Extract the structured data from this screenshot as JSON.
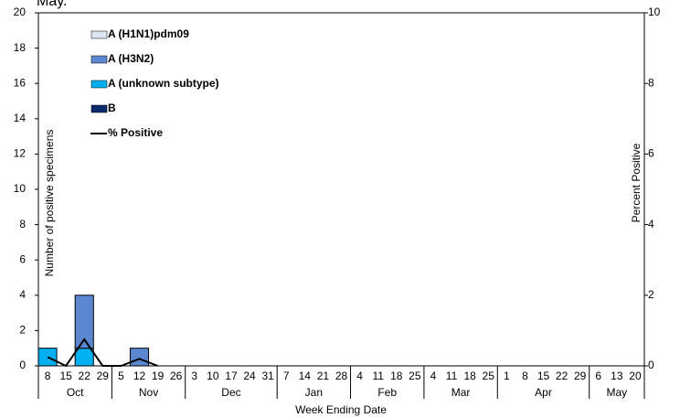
{
  "caption": "May.",
  "chart_data": {
    "type": "bar",
    "y_label": "Number of positive specimens",
    "y2_label": "Percent Positive",
    "x_label": "Week Ending Date",
    "categories": [
      "8",
      "15",
      "22",
      "29",
      "5",
      "12",
      "19",
      "26",
      "3",
      "10",
      "17",
      "24",
      "31",
      "7",
      "14",
      "21",
      "28",
      "4",
      "11",
      "18",
      "25",
      "4",
      "11",
      "18",
      "25",
      "1",
      "8",
      "15",
      "22",
      "29",
      "6",
      "13",
      "20"
    ],
    "month_groups": [
      {
        "label": "Oct",
        "weeks": 4
      },
      {
        "label": "Nov",
        "weeks": 4
      },
      {
        "label": "Dec",
        "weeks": 5
      },
      {
        "label": "Jan",
        "weeks": 4
      },
      {
        "label": "Feb",
        "weeks": 4
      },
      {
        "label": "Mar",
        "weeks": 4
      },
      {
        "label": "Apr",
        "weeks": 5
      },
      {
        "label": "May",
        "weeks": 3
      }
    ],
    "series": [
      {
        "name": "A (H1N1)pdm09",
        "color": "#dce6f2",
        "values": [
          0,
          0,
          0,
          0,
          0,
          0,
          0,
          0,
          0,
          0,
          0,
          0,
          0,
          0,
          0,
          0,
          0,
          0,
          0,
          0,
          0,
          0,
          0,
          0,
          0,
          0,
          0,
          0,
          0,
          0,
          0,
          0,
          0
        ]
      },
      {
        "name": "A (H3N2)",
        "color": "#5b86d0",
        "values": [
          0,
          0,
          3,
          0,
          0,
          1,
          0,
          0,
          0,
          0,
          0,
          0,
          0,
          0,
          0,
          0,
          0,
          0,
          0,
          0,
          0,
          0,
          0,
          0,
          0,
          0,
          0,
          0,
          0,
          0,
          0,
          0,
          0
        ]
      },
      {
        "name": "A (unknown subtype)",
        "color": "#00b0f0",
        "values": [
          1,
          0,
          1,
          0,
          0,
          0,
          0,
          0,
          0,
          0,
          0,
          0,
          0,
          0,
          0,
          0,
          0,
          0,
          0,
          0,
          0,
          0,
          0,
          0,
          0,
          0,
          0,
          0,
          0,
          0,
          0,
          0,
          0
        ]
      },
      {
        "name": "B",
        "color": "#0d2a6b",
        "values": [
          0,
          0,
          0,
          0,
          0,
          0,
          0,
          0,
          0,
          0,
          0,
          0,
          0,
          0,
          0,
          0,
          0,
          0,
          0,
          0,
          0,
          0,
          0,
          0,
          0,
          0,
          0,
          0,
          0,
          0,
          0,
          0,
          0
        ]
      },
      {
        "name": "% Positive",
        "type": "line",
        "axis": "y2",
        "color": "#000000",
        "values": [
          0.25,
          0,
          0.75,
          0,
          0,
          0.2,
          0,
          null,
          null,
          null,
          null,
          null,
          null,
          null,
          null,
          null,
          null,
          null,
          null,
          null,
          null,
          null,
          null,
          null,
          null,
          null,
          null,
          null,
          null,
          null,
          null,
          null,
          null
        ]
      }
    ],
    "ylim": [
      0,
      20
    ],
    "yticks": [
      0,
      2,
      4,
      6,
      8,
      10,
      12,
      14,
      16,
      18,
      20
    ],
    "y2lim": [
      0,
      10
    ],
    "y2ticks": [
      0,
      2,
      4,
      6,
      8,
      10
    ]
  }
}
